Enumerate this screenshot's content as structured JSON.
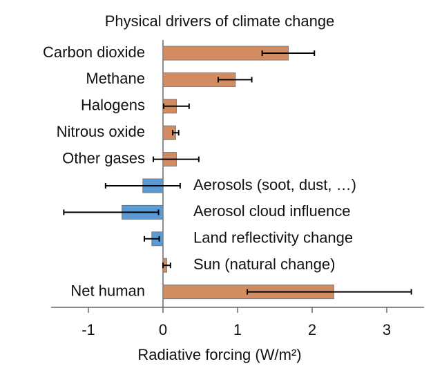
{
  "chart_data": {
    "type": "bar",
    "orientation": "horizontal",
    "title": "Physical drivers of climate change",
    "x_label": "Radiative forcing (W/m²)",
    "categories": [
      "Carbon dioxide",
      "Methane",
      "Halogens",
      "Nitrous oxide",
      "Other gases",
      "Aerosols (soot, dust, …)",
      "Aerosol cloud influence",
      "Land reflectivity change",
      "Sun (natural change)",
      "Net human"
    ],
    "values": [
      1.68,
      0.97,
      0.18,
      0.17,
      0.18,
      -0.27,
      -0.55,
      -0.15,
      0.05,
      2.29
    ],
    "error_low": [
      1.33,
      0.74,
      0.01,
      0.13,
      -0.13,
      -0.77,
      -1.33,
      -0.25,
      0.0,
      1.13
    ],
    "error_high": [
      2.03,
      1.19,
      0.35,
      0.21,
      0.48,
      0.23,
      -0.06,
      -0.05,
      0.1,
      3.33
    ],
    "colors": [
      "#d38c61",
      "#d38c61",
      "#d38c61",
      "#d38c61",
      "#d38c61",
      "#5b9bd5",
      "#5b9bd5",
      "#5b9bd5",
      "#d38c61",
      "#d38c61"
    ],
    "xlim": [
      -1.5,
      3.5
    ],
    "xticks": [
      -1,
      0,
      1,
      2,
      3
    ]
  }
}
